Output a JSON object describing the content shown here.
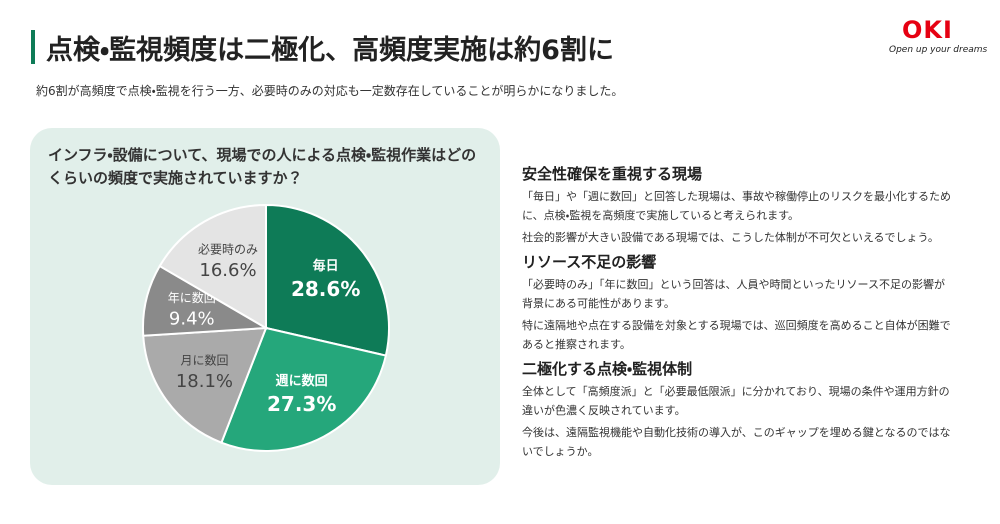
{
  "header": {
    "title": "点検・監視頻度は二極化、高頻度実施は約6割に",
    "subtitle": "約6割が高頻度で点検・監視を行う一方、必要時のみの対応も一定数存在していることが明らかになりました。",
    "logo": "OKI",
    "tagline": "Open up your dreams"
  },
  "chart_data": {
    "type": "pie",
    "title": "インフラ・設備について、現場での人による点検・監視作業はどのくらいの頻度で実施されていますか？",
    "categories": [
      "毎日",
      "週に数回",
      "月に数回",
      "年に数回",
      "必要時のみ"
    ],
    "values": [
      28.6,
      27.3,
      18.1,
      9.4,
      16.6
    ],
    "value_labels": [
      "28.6%",
      "27.3%",
      "18.1%",
      "9.4%",
      "16.6%"
    ],
    "colors": [
      "#0e7b57",
      "#25a77b",
      "#aaaaaa",
      "#8a8a8a",
      "#e4e4e4"
    ]
  },
  "sections": [
    {
      "heading": "安全性確保を重視する現場",
      "paragraphs": [
        "「毎日」や「週に数回」と回答した現場は、事故や稼働停止のリスクを最小化するために、点検・監視を高頻度で実施していると考えられます。",
        "社会的影響が大きい設備である現場では、こうした体制が不可欠といえるでしょう。"
      ]
    },
    {
      "heading": "リソース不足の影響",
      "paragraphs": [
        "「必要時のみ」「年に数回」という回答は、人員や時間といったリソース不足の影響が背景にある可能性があります。",
        "特に遠隔地や点在する設備を対象とする現場では、巡回頻度を高めること自体が困難であると推察されます。"
      ]
    },
    {
      "heading": "二極化する点検・監視体制",
      "paragraphs": [
        "全体として「高頻度派」と「必要最低限派」に分かれており、現場の条件や運用方針の違いが色濃く反映されています。",
        "今後は、遠隔監視機能や自動化技術の導入が、このギャップを埋める鍵となるのではないでしょうか。"
      ]
    }
  ]
}
